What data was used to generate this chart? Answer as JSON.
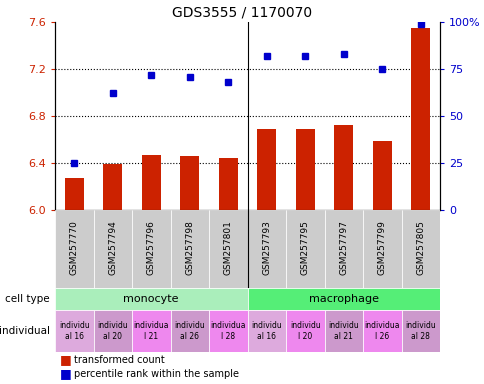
{
  "title": "GDS3555 / 1170070",
  "samples": [
    "GSM257770",
    "GSM257794",
    "GSM257796",
    "GSM257798",
    "GSM257801",
    "GSM257793",
    "GSM257795",
    "GSM257797",
    "GSM257799",
    "GSM257805"
  ],
  "bar_values": [
    6.27,
    6.39,
    6.47,
    6.46,
    6.44,
    6.69,
    6.69,
    6.72,
    6.59,
    7.55
  ],
  "scatter_values": [
    25,
    62,
    72,
    71,
    68,
    82,
    82,
    83,
    75,
    99
  ],
  "ylim_left": [
    6.0,
    7.6
  ],
  "ylim_right": [
    0,
    100
  ],
  "yticks_left": [
    6.0,
    6.4,
    6.8,
    7.2,
    7.6
  ],
  "yticks_right": [
    0,
    25,
    50,
    75,
    100
  ],
  "ytick_labels_right": [
    "0",
    "25",
    "50",
    "75",
    "100%"
  ],
  "hlines": [
    6.4,
    6.8,
    7.2
  ],
  "bar_color": "#cc2200",
  "scatter_color": "#0000cc",
  "cell_types": [
    "monocyte",
    "macrophage"
  ],
  "cell_type_colors": [
    "#aaeebb",
    "#55ee77"
  ],
  "ind_texts": [
    "individu\nal 16",
    "individu\nal 20",
    "individua\nl 21",
    "individu\nal 26",
    "individua\nl 28",
    "individu\nal 16",
    "individu\nl 20",
    "individu\nal 21",
    "individua\nl 26",
    "individu\nal 28"
  ],
  "ind_colors": [
    "#ddaadd",
    "#cc99cc",
    "#ee88ee",
    "#cc99cc",
    "#ee88ee",
    "#ddaadd",
    "#ee88ee",
    "#cc99cc",
    "#ee88ee",
    "#cc99cc"
  ],
  "label_bg": "#cccccc",
  "bar_width": 0.5
}
